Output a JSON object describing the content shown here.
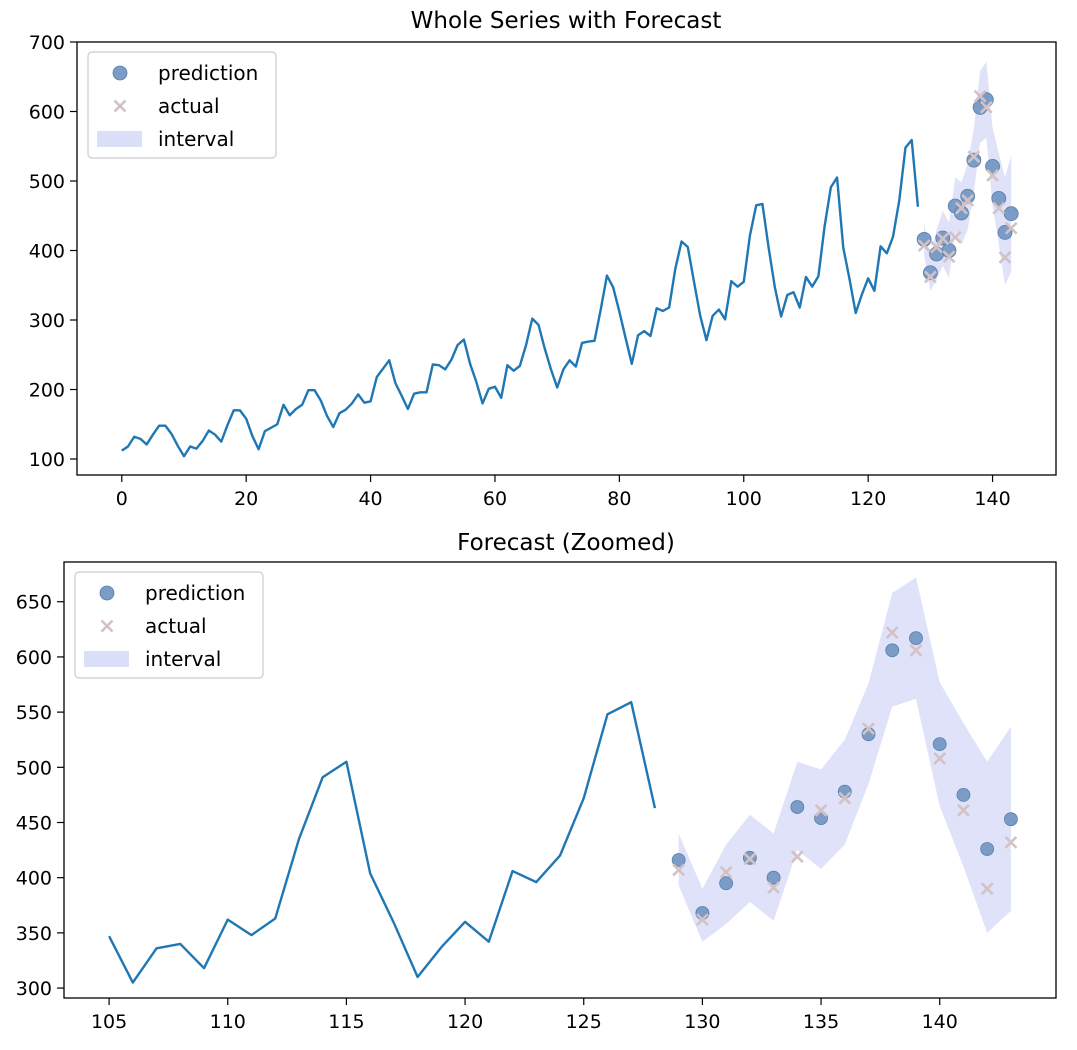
{
  "chart_data": [
    {
      "type": "line",
      "title": "Whole Series with Forecast",
      "xlabel": "",
      "ylabel": "",
      "xlim": [
        -7.2,
        150.2
      ],
      "ylim": [
        77,
        700
      ],
      "xticks": [
        0,
        20,
        40,
        60,
        80,
        100,
        120,
        140
      ],
      "yticks": [
        100,
        200,
        300,
        400,
        500,
        600,
        700
      ],
      "legend_position": "top-left",
      "legend": [
        "prediction",
        "actual",
        "interval"
      ],
      "history": {
        "x_start": 0,
        "values": [
          112,
          118,
          132,
          129,
          121,
          135,
          148,
          148,
          136,
          119,
          104,
          118,
          115,
          126,
          141,
          135,
          125,
          149,
          170,
          170,
          158,
          133,
          114,
          140,
          145,
          150,
          178,
          163,
          172,
          178,
          199,
          199,
          184,
          162,
          146,
          166,
          171,
          180,
          193,
          181,
          183,
          218,
          230,
          242,
          209,
          191,
          172,
          194,
          196,
          196,
          236,
          235,
          229,
          243,
          264,
          272,
          237,
          211,
          180,
          201,
          204,
          188,
          235,
          227,
          234,
          264,
          302,
          293,
          259,
          229,
          203,
          229,
          242,
          233,
          267,
          269,
          270,
          315,
          364,
          347,
          312,
          274,
          237,
          278,
          284,
          277,
          317,
          313,
          318,
          374,
          413,
          405,
          355,
          306,
          271,
          306,
          315,
          301,
          356,
          348,
          355,
          422,
          465,
          467,
          404,
          347,
          305,
          336,
          340,
          318,
          362,
          348,
          363,
          435,
          491,
          505,
          404,
          359,
          310,
          337,
          360,
          342,
          406,
          396,
          420,
          472,
          548,
          559,
          463
        ]
      },
      "forecast": {
        "x": [
          129,
          130,
          131,
          132,
          133,
          134,
          135,
          136,
          137,
          138,
          139,
          140,
          141,
          142,
          143
        ],
        "prediction": [
          416,
          368,
          395,
          418,
          400,
          464,
          454,
          478,
          530,
          606,
          617,
          521,
          475,
          426,
          453
        ],
        "actual": [
          407,
          362,
          405,
          417,
          391,
          419,
          461,
          472,
          535,
          622,
          606,
          508,
          461,
          390,
          432
        ],
        "interval_lower": [
          393,
          342,
          358,
          378,
          361,
          425,
          408,
          430,
          485,
          555,
          562,
          465,
          410,
          350,
          370
        ],
        "interval_upper": [
          440,
          390,
          430,
          457,
          440,
          505,
          498,
          525,
          576,
          658,
          672,
          577,
          540,
          505,
          537
        ]
      }
    },
    {
      "type": "line",
      "title": "Forecast (Zoomed)",
      "xlabel": "",
      "ylabel": "",
      "xlim": [
        103.1,
        144.9
      ],
      "ylim": [
        291,
        686
      ],
      "xticks": [
        105,
        110,
        115,
        120,
        125,
        130,
        135,
        140
      ],
      "yticks": [
        300,
        350,
        400,
        450,
        500,
        550,
        600,
        650
      ],
      "legend_position": "top-left",
      "legend": [
        "prediction",
        "actual",
        "interval"
      ],
      "history": {
        "x_start": 105,
        "values": [
          347,
          305,
          336,
          340,
          318,
          362,
          348,
          363,
          435,
          491,
          505,
          404,
          359,
          310,
          337,
          360,
          342,
          406,
          396,
          420,
          472,
          548,
          559,
          463
        ]
      },
      "forecast": {
        "x": [
          129,
          130,
          131,
          132,
          133,
          134,
          135,
          136,
          137,
          138,
          139,
          140,
          141,
          142,
          143
        ],
        "prediction": [
          416,
          368,
          395,
          418,
          400,
          464,
          454,
          478,
          530,
          606,
          617,
          521,
          475,
          426,
          453
        ],
        "actual": [
          407,
          362,
          405,
          417,
          391,
          419,
          461,
          472,
          535,
          622,
          606,
          508,
          461,
          390,
          432
        ],
        "interval_lower": [
          393,
          342,
          358,
          378,
          361,
          425,
          408,
          430,
          485,
          555,
          562,
          465,
          410,
          350,
          370
        ],
        "interval_upper": [
          440,
          390,
          430,
          457,
          440,
          505,
          498,
          525,
          576,
          658,
          672,
          577,
          540,
          505,
          537
        ]
      }
    }
  ],
  "colors": {
    "line": "#1f77b4",
    "prediction": "#7a9cc6",
    "prediction_edge": "#5b7fa8",
    "actual": "#d2c2c4",
    "interval": "#dcdff8"
  }
}
